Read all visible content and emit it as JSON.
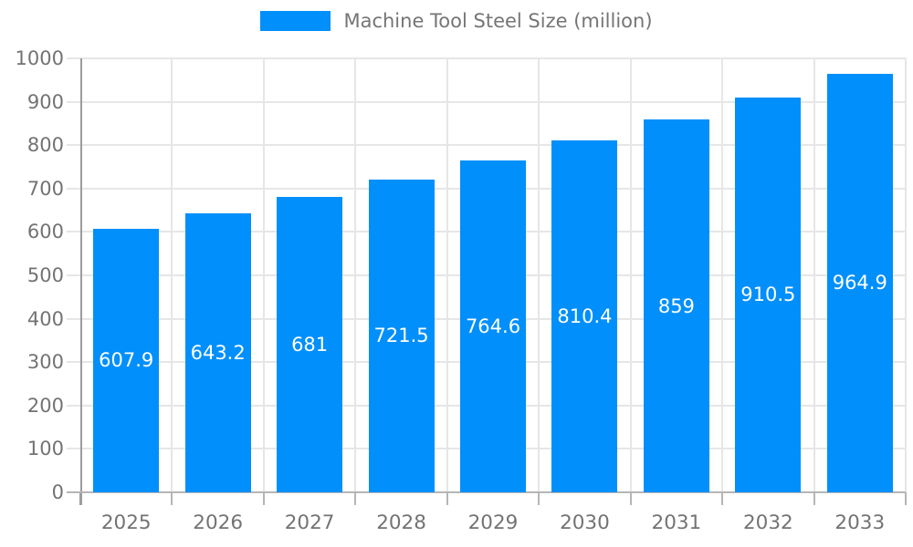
{
  "chart_data": {
    "type": "bar",
    "title": "Machine Tool Steel Size (million)",
    "legend_position": "top-center",
    "categories": [
      "2025",
      "2026",
      "2027",
      "2028",
      "2029",
      "2030",
      "2031",
      "2032",
      "2033"
    ],
    "values": [
      607.9,
      643.2,
      681,
      721.5,
      764.6,
      810.4,
      859,
      910.5,
      964.9
    ],
    "value_labels": [
      "607.9",
      "643.2",
      "681",
      "721.5",
      "764.6",
      "810.4",
      "859",
      "910.5",
      "964.9"
    ],
    "series_name": "Machine Tool Steel Size (million)",
    "xlabel": "",
    "ylabel": "",
    "ylim": [
      0,
      1000
    ],
    "ytick_step": 100,
    "ytick_labels": [
      "0",
      "100",
      "200",
      "300",
      "400",
      "500",
      "600",
      "700",
      "800",
      "900",
      "1000"
    ],
    "grid": "horizontal-and-vertical",
    "colors": {
      "bar": "#008FFB",
      "value_text": "#ffffff",
      "axis_text": "#737373",
      "legend_text": "#757575",
      "gridline": "#e6e6e6",
      "y_axis_line": "#9c9c9c",
      "x_axis_line": "#b5b5b5",
      "background": "#ffffff"
    }
  }
}
